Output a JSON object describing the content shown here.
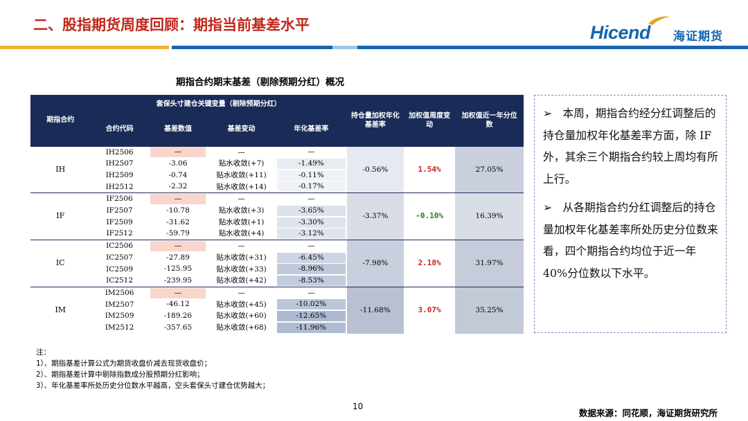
{
  "header": {
    "title": "二、股指期货周度回顾：期指当前基差水平",
    "logo_en": "Hicend",
    "logo_cn": "海证期货"
  },
  "table": {
    "title": "期指合约期末基差（剔除预期分红）概况",
    "group_header": "期指合约",
    "merged_header": "套保头寸建仓关键变量（剔除预期分红）",
    "col_headers": [
      "合约代码",
      "基差数值",
      "基差变动",
      "年化基差率"
    ],
    "header_holding": "持仓量加权年化基差率",
    "header_wchange": "加权值周度变动",
    "header_pct": "加权值近一年分位数",
    "groups": [
      {
        "name": "IH",
        "holding": "-0.56%",
        "wchange": "1.54%",
        "pct": "27.05%",
        "rows": [
          {
            "code": "IH2506",
            "basis": "—",
            "change": "—",
            "annual": "—"
          },
          {
            "code": "IH2507",
            "basis": "-3.06",
            "change": "贴水收敛(+7)",
            "annual": "-1.49%"
          },
          {
            "code": "IH2509",
            "basis": "-0.74",
            "change": "贴水收敛(+11)",
            "annual": "-0.11%"
          },
          {
            "code": "IH2512",
            "basis": "-2.32",
            "change": "贴水收敛(+14)",
            "annual": "-0.17%"
          }
        ]
      },
      {
        "name": "IF",
        "holding": "-3.37%",
        "wchange": "-0.10%",
        "pct": "16.39%",
        "rows": [
          {
            "code": "IF2506",
            "basis": "—",
            "change": "—",
            "annual": "—"
          },
          {
            "code": "IF2507",
            "basis": "-10.78",
            "change": "贴水收敛(+3)",
            "annual": "-3.65%"
          },
          {
            "code": "IF2509",
            "basis": "-31.62",
            "change": "贴水收敛(+1)",
            "annual": "-3.30%"
          },
          {
            "code": "IF2512",
            "basis": "-59.79",
            "change": "贴水收敛(+4)",
            "annual": "-3.12%"
          }
        ]
      },
      {
        "name": "IC",
        "holding": "-7.98%",
        "wchange": "2.18%",
        "pct": "31.97%",
        "rows": [
          {
            "code": "IC2506",
            "basis": "—",
            "change": "—",
            "annual": "—"
          },
          {
            "code": "IC2507",
            "basis": "-27.89",
            "change": "贴水收敛(+31)",
            "annual": "-6.45%"
          },
          {
            "code": "IC2509",
            "basis": "-125.95",
            "change": "贴水收敛(+33)",
            "annual": "-8.96%"
          },
          {
            "code": "IC2512",
            "basis": "-239.95",
            "change": "贴水收敛(+42)",
            "annual": "-8.53%"
          }
        ]
      },
      {
        "name": "IM",
        "holding": "-11.68%",
        "wchange": "3.07%",
        "pct": "35.25%",
        "rows": [
          {
            "code": "IM2506",
            "basis": "—",
            "change": "—",
            "annual": "—"
          },
          {
            "code": "IM2507",
            "basis": "-46.12",
            "change": "贴水收敛(+45)",
            "annual": "-10.02%"
          },
          {
            "code": "IM2509",
            "basis": "-189.26",
            "change": "贴水收敛(+60)",
            "annual": "-12.65%"
          },
          {
            "code": "IM2512",
            "basis": "-357.65",
            "change": "贴水收敛(+68)",
            "annual": "-11.96%"
          }
        ]
      }
    ]
  },
  "notes": {
    "title": "注：",
    "lines": [
      "1）、期指基差计算公式为期货收盘价减去现货收盘价；",
      "2）、期指基差计算中剔除指数成分股预期分红影响；",
      "3）、年化基差率所处历史分位数水平越高，空头套保头寸建仓优势越大；"
    ]
  },
  "sidebar": {
    "bullet": "➢",
    "paragraphs": [
      "本周，期指合约经分红调整后的持仓量加权年化基差率方面，除 IF 外，其余三个期指合约较上周均有所上行。",
      "从各期指合约分红调整后的持仓量加权年化基差率所处历史分位数来看，四个期指合约均位于近一年 40%分位数以下水平。"
    ]
  },
  "footer": {
    "page": "10",
    "source": "数据来源：同花顺，海证期货研究所"
  },
  "colors": {
    "title_red": "#c0261b",
    "brand_blue": "#1466b0",
    "table_header": "#1a2b57",
    "wchange_up": "#c0261b",
    "wchange_down": "#2a7a1e",
    "missing_basis_fill": "#f8d6cc"
  }
}
